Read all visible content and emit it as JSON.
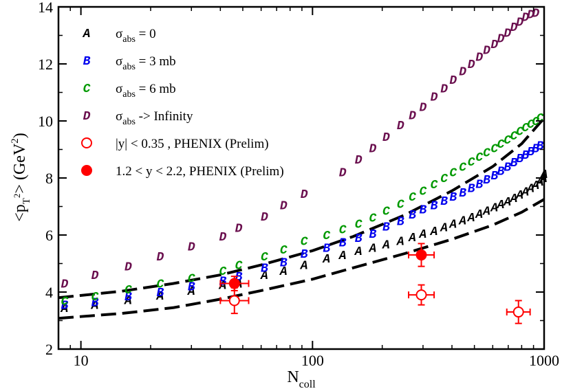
{
  "chart_data": {
    "type": "scatter",
    "xscale": "log",
    "xlim": [
      8,
      1000
    ],
    "ylim": [
      2,
      14
    ],
    "xticks": [
      {
        "value": 10,
        "label": "10"
      },
      {
        "value": 100,
        "label": "100"
      },
      {
        "value": 1000,
        "label": "1000"
      }
    ],
    "yticks": [
      {
        "value": 2,
        "label": "2"
      },
      {
        "value": 4,
        "label": "4"
      },
      {
        "value": 6,
        "label": "6"
      },
      {
        "value": 8,
        "label": "8"
      },
      {
        "value": 10,
        "label": "10"
      },
      {
        "value": 12,
        "label": "12"
      },
      {
        "value": 14,
        "label": "14"
      }
    ],
    "xlabel": {
      "main": "N",
      "sub": "coll"
    },
    "ylabel": {
      "pre": "<p",
      "sub": "T",
      "sup1": "2",
      "mid": "> (GeV",
      "sup2": "2",
      "post": ")"
    },
    "legend": {
      "position": "top-left",
      "entries": [
        {
          "marker": "A",
          "color": "#000000",
          "pre": "σ",
          "sub": "abs",
          "post": " = 0"
        },
        {
          "marker": "B",
          "color": "#0000ee",
          "pre": "σ",
          "sub": "abs",
          "post": " = 3 mb"
        },
        {
          "marker": "C",
          "color": "#009900",
          "pre": "σ",
          "sub": "abs",
          "post": " = 6 mb"
        },
        {
          "marker": "D",
          "color": "#6a0f4e",
          "pre": "σ",
          "sub": "abs",
          "post": " -> Infinity"
        },
        {
          "marker": "open-circle",
          "color": "#ff0000",
          "pre": "|y| < 0.35 , PHENIX (Prelim)",
          "sub": "",
          "post": ""
        },
        {
          "marker": "filled-circle",
          "color": "#ff0000",
          "pre": "1.2 < y < 2.2, PHENIX (Prelim)",
          "sub": "",
          "post": ""
        }
      ]
    },
    "series": [
      {
        "name": "σabs = 0",
        "glyph": "A",
        "color": "#000000",
        "points": [
          [
            8.5,
            3.45
          ],
          [
            11.5,
            3.55
          ],
          [
            16,
            3.72
          ],
          [
            22,
            3.88
          ],
          [
            30,
            4.05
          ],
          [
            41,
            4.25
          ],
          [
            48,
            4.3
          ],
          [
            62,
            4.6
          ],
          [
            75,
            4.75
          ],
          [
            92,
            4.95
          ],
          [
            115,
            5.18
          ],
          [
            135,
            5.3
          ],
          [
            158,
            5.45
          ],
          [
            182,
            5.55
          ],
          [
            208,
            5.68
          ],
          [
            240,
            5.8
          ],
          [
            270,
            5.93
          ],
          [
            300,
            6.05
          ],
          [
            335,
            6.15
          ],
          [
            370,
            6.28
          ],
          [
            405,
            6.4
          ],
          [
            445,
            6.52
          ],
          [
            485,
            6.63
          ],
          [
            525,
            6.75
          ],
          [
            565,
            6.86
          ],
          [
            610,
            6.97
          ],
          [
            650,
            7.08
          ],
          [
            695,
            7.18
          ],
          [
            740,
            7.3
          ],
          [
            785,
            7.42
          ],
          [
            830,
            7.53
          ],
          [
            875,
            7.65
          ],
          [
            920,
            7.76
          ],
          [
            960,
            7.88
          ],
          [
            995,
            8.0
          ],
          [
            1000,
            8.15
          ]
        ]
      },
      {
        "name": "σabs = 3 mb",
        "glyph": "B",
        "color": "#0000ee",
        "points": [
          [
            8.5,
            3.55
          ],
          [
            11.5,
            3.65
          ],
          [
            16,
            3.85
          ],
          [
            22,
            4.0
          ],
          [
            30,
            4.2
          ],
          [
            41,
            4.4
          ],
          [
            48,
            4.55
          ],
          [
            62,
            4.85
          ],
          [
            75,
            5.05
          ],
          [
            92,
            5.35
          ],
          [
            115,
            5.55
          ],
          [
            135,
            5.75
          ],
          [
            158,
            5.9
          ],
          [
            182,
            6.05
          ],
          [
            208,
            6.3
          ],
          [
            240,
            6.5
          ],
          [
            270,
            6.72
          ],
          [
            300,
            6.9
          ],
          [
            335,
            7.05
          ],
          [
            370,
            7.2
          ],
          [
            405,
            7.35
          ],
          [
            445,
            7.5
          ],
          [
            485,
            7.65
          ],
          [
            525,
            7.8
          ],
          [
            565,
            7.95
          ],
          [
            610,
            8.1
          ],
          [
            650,
            8.25
          ],
          [
            695,
            8.4
          ],
          [
            740,
            8.55
          ],
          [
            785,
            8.7
          ],
          [
            830,
            8.82
          ],
          [
            875,
            8.94
          ],
          [
            920,
            9.05
          ],
          [
            960,
            9.15
          ]
        ]
      },
      {
        "name": "σabs = 6 mb",
        "glyph": "C",
        "color": "#009900",
        "points": [
          [
            8.5,
            3.7
          ],
          [
            11.5,
            3.85
          ],
          [
            16,
            4.1
          ],
          [
            22,
            4.3
          ],
          [
            30,
            4.5
          ],
          [
            41,
            4.75
          ],
          [
            48,
            4.95
          ],
          [
            62,
            5.25
          ],
          [
            75,
            5.5
          ],
          [
            92,
            5.8
          ],
          [
            115,
            6.0
          ],
          [
            135,
            6.2
          ],
          [
            158,
            6.4
          ],
          [
            182,
            6.62
          ],
          [
            208,
            6.85
          ],
          [
            240,
            7.1
          ],
          [
            270,
            7.35
          ],
          [
            300,
            7.55
          ],
          [
            335,
            7.78
          ],
          [
            370,
            8.0
          ],
          [
            405,
            8.2
          ],
          [
            445,
            8.4
          ],
          [
            485,
            8.58
          ],
          [
            525,
            8.75
          ],
          [
            565,
            8.9
          ],
          [
            610,
            9.05
          ],
          [
            650,
            9.2
          ],
          [
            695,
            9.35
          ],
          [
            740,
            9.5
          ],
          [
            785,
            9.65
          ],
          [
            830,
            9.78
          ],
          [
            875,
            9.9
          ],
          [
            920,
            10.0
          ],
          [
            960,
            10.12
          ]
        ]
      },
      {
        "name": "σabs -> Infinity",
        "glyph": "D",
        "color": "#6a0f4e",
        "points": [
          [
            8.5,
            4.3
          ],
          [
            11.5,
            4.6
          ],
          [
            16,
            4.9
          ],
          [
            22,
            5.25
          ],
          [
            30,
            5.6
          ],
          [
            41,
            5.95
          ],
          [
            48,
            6.25
          ],
          [
            62,
            6.65
          ],
          [
            75,
            7.05
          ],
          [
            92,
            7.45
          ],
          [
            135,
            8.2
          ],
          [
            158,
            8.65
          ],
          [
            182,
            9.05
          ],
          [
            208,
            9.45
          ],
          [
            240,
            9.85
          ],
          [
            270,
            10.2
          ],
          [
            300,
            10.5
          ],
          [
            335,
            10.85
          ],
          [
            370,
            11.15
          ],
          [
            405,
            11.45
          ],
          [
            445,
            11.75
          ],
          [
            485,
            12.0
          ],
          [
            525,
            12.25
          ],
          [
            565,
            12.5
          ],
          [
            610,
            12.7
          ],
          [
            650,
            12.9
          ],
          [
            695,
            13.1
          ],
          [
            740,
            13.3
          ],
          [
            785,
            13.48
          ],
          [
            830,
            13.65
          ],
          [
            875,
            13.75
          ],
          [
            920,
            13.8
          ]
        ]
      }
    ],
    "curves": [
      {
        "name": "upper dashed curve",
        "color": "#000000",
        "points": [
          [
            8,
            3.8
          ],
          [
            15,
            4.03
          ],
          [
            25,
            4.3
          ],
          [
            40,
            4.6
          ],
          [
            60,
            4.95
          ],
          [
            100,
            5.45
          ],
          [
            150,
            5.95
          ],
          [
            250,
            6.7
          ],
          [
            400,
            7.55
          ],
          [
            600,
            8.4
          ],
          [
            800,
            9.2
          ],
          [
            1000,
            10.1
          ]
        ]
      },
      {
        "name": "lower dashed curve",
        "color": "#000000",
        "points": [
          [
            8,
            3.08
          ],
          [
            15,
            3.25
          ],
          [
            25,
            3.45
          ],
          [
            40,
            3.75
          ],
          [
            60,
            4.05
          ],
          [
            100,
            4.45
          ],
          [
            150,
            4.85
          ],
          [
            250,
            5.35
          ],
          [
            400,
            5.85
          ],
          [
            600,
            6.35
          ],
          [
            800,
            6.8
          ],
          [
            1000,
            7.25
          ]
        ]
      }
    ],
    "data_points": [
      {
        "name": "|y| < 0.35 , PHENIX (Prelim)",
        "style": "open",
        "color": "#ff0000",
        "points": [
          {
            "x": 46,
            "y": 3.7,
            "xerr": [
              40,
              53
            ],
            "yerr": 0.45
          },
          {
            "x": 295,
            "y": 3.9,
            "xerr": [
              260,
              335
            ],
            "yerr": 0.35
          },
          {
            "x": 775,
            "y": 3.3,
            "xerr": [
              690,
              870
            ],
            "yerr": 0.4
          }
        ]
      },
      {
        "name": "1.2 < y < 2.2, PHENIX (Prelim)",
        "style": "filled",
        "color": "#ff0000",
        "points": [
          {
            "x": 46,
            "y": 4.3,
            "xerr": [
              40,
              53
            ],
            "yerr": 0.25
          },
          {
            "x": 295,
            "y": 5.3,
            "xerr": [
              260,
              335
            ],
            "yerr": 0.4
          }
        ]
      }
    ]
  }
}
